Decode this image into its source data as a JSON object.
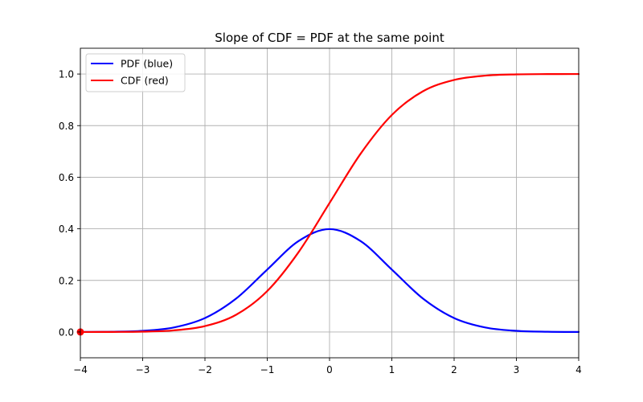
{
  "chart_data": {
    "type": "line",
    "title": "Slope of CDF = PDF at the same point",
    "xlabel": "",
    "ylabel": "",
    "xlim": [
      -4,
      4
    ],
    "ylim": [
      -0.1,
      1.1
    ],
    "grid": true,
    "legend_position": "upper-left",
    "x_ticks": [
      -4,
      -3,
      -2,
      -1,
      0,
      1,
      2,
      3,
      4
    ],
    "x_tick_labels": [
      "−4",
      "−3",
      "−2",
      "−1",
      "0",
      "1",
      "2",
      "3",
      "4"
    ],
    "y_ticks": [
      0.0,
      0.2,
      0.4,
      0.6,
      0.8,
      1.0
    ],
    "y_tick_labels": [
      "0.0",
      "0.2",
      "0.4",
      "0.6",
      "0.8",
      "1.0"
    ],
    "x": [
      -4.0,
      -3.5,
      -3.0,
      -2.5,
      -2.0,
      -1.5,
      -1.0,
      -0.5,
      0.0,
      0.5,
      1.0,
      1.5,
      2.0,
      2.5,
      3.0,
      3.5,
      4.0
    ],
    "series": [
      {
        "name": "PDF (blue)",
        "color": "#0000ff",
        "values": [
          0.0001,
          0.0009,
          0.0044,
          0.0175,
          0.054,
          0.1295,
          0.242,
          0.3521,
          0.3989,
          0.3521,
          0.242,
          0.1295,
          0.054,
          0.0175,
          0.0044,
          0.0009,
          0.0001
        ]
      },
      {
        "name": "CDF (red)",
        "color": "#ff0000",
        "values": [
          0.0,
          0.0002,
          0.0013,
          0.0062,
          0.0228,
          0.0668,
          0.1587,
          0.3085,
          0.5,
          0.6915,
          0.8413,
          0.9332,
          0.9772,
          0.9938,
          0.9987,
          0.9998,
          1.0
        ]
      }
    ],
    "markers": [
      {
        "x": -4,
        "y": 0.0,
        "color": "#ff0000"
      }
    ]
  }
}
